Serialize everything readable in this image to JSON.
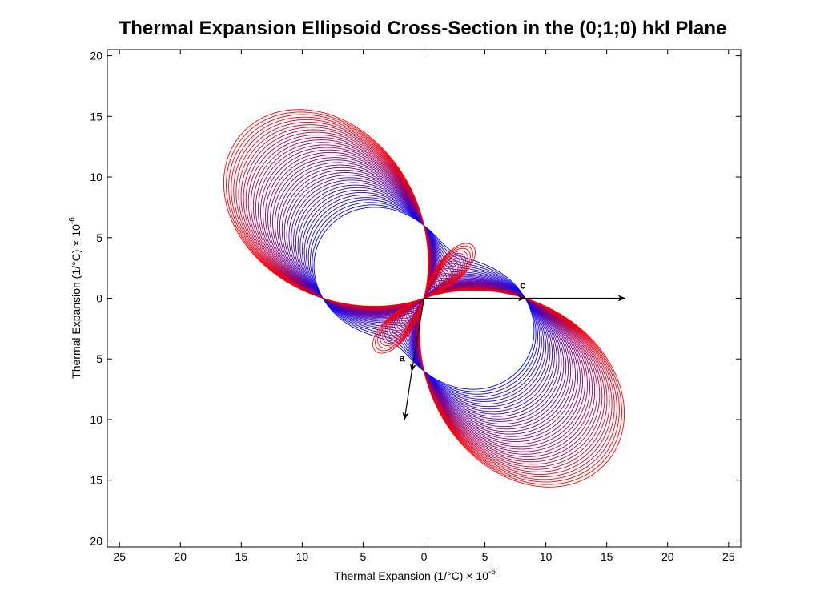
{
  "chart_data": {
    "type": "line",
    "title": "Thermal Expansion Ellipsoid Cross-Section in the (0;1;0) hkl Plane",
    "xlabel": "Thermal Expansion (1/°C) × 10",
    "xlabel_exponent": "-6",
    "ylabel": "Thermal Expansion (1/°C) × 10",
    "ylabel_exponent": "-6",
    "xlim": [
      -26,
      26
    ],
    "ylim": [
      -20.5,
      20.5
    ],
    "xticks": [
      -25,
      -20,
      -15,
      -10,
      -5,
      0,
      5,
      10,
      15,
      20,
      25
    ],
    "xtick_labels": [
      "25",
      "20",
      "15",
      "10",
      "5",
      "0",
      "5",
      "10",
      "15",
      "20",
      "25"
    ],
    "yticks": [
      20,
      15,
      10,
      5,
      0,
      -5,
      -10,
      -15,
      -20
    ],
    "ytick_labels": [
      "20",
      "15",
      "10",
      "5",
      "0",
      "5",
      "10",
      "15",
      "20"
    ],
    "grid": false,
    "colormap": {
      "start": "#0000ff",
      "end": "#ff0000"
    },
    "surface": {
      "description": "nested cross-sections of the thermal expansion surface, alpha(theta)=alpha11*cos^2+alpha33*sin^2+2*alpha13*sin*cos, drawn as |alpha(theta)| from blue (inner) to red (outer)",
      "num_curves": 40,
      "alpha11": {
        "start": 6.0,
        "end": 6.0
      },
      "alpha33": {
        "start": 8.3,
        "end": 8.3
      },
      "alpha13": {
        "start": -2.4,
        "end": -13.0
      }
    },
    "vectors": [
      {
        "label": "c",
        "from": [
          0,
          0
        ],
        "to": [
          8.3,
          0
        ]
      },
      {
        "label": "a",
        "from": [
          0,
          0
        ],
        "to": [
          -1.0,
          -6.0
        ]
      },
      {
        "label": "",
        "from": [
          8.3,
          0
        ],
        "to": [
          16.5,
          0
        ]
      },
      {
        "label": "",
        "from": [
          -1.0,
          -6.0
        ],
        "to": [
          -1.6,
          -10.0
        ]
      }
    ]
  }
}
